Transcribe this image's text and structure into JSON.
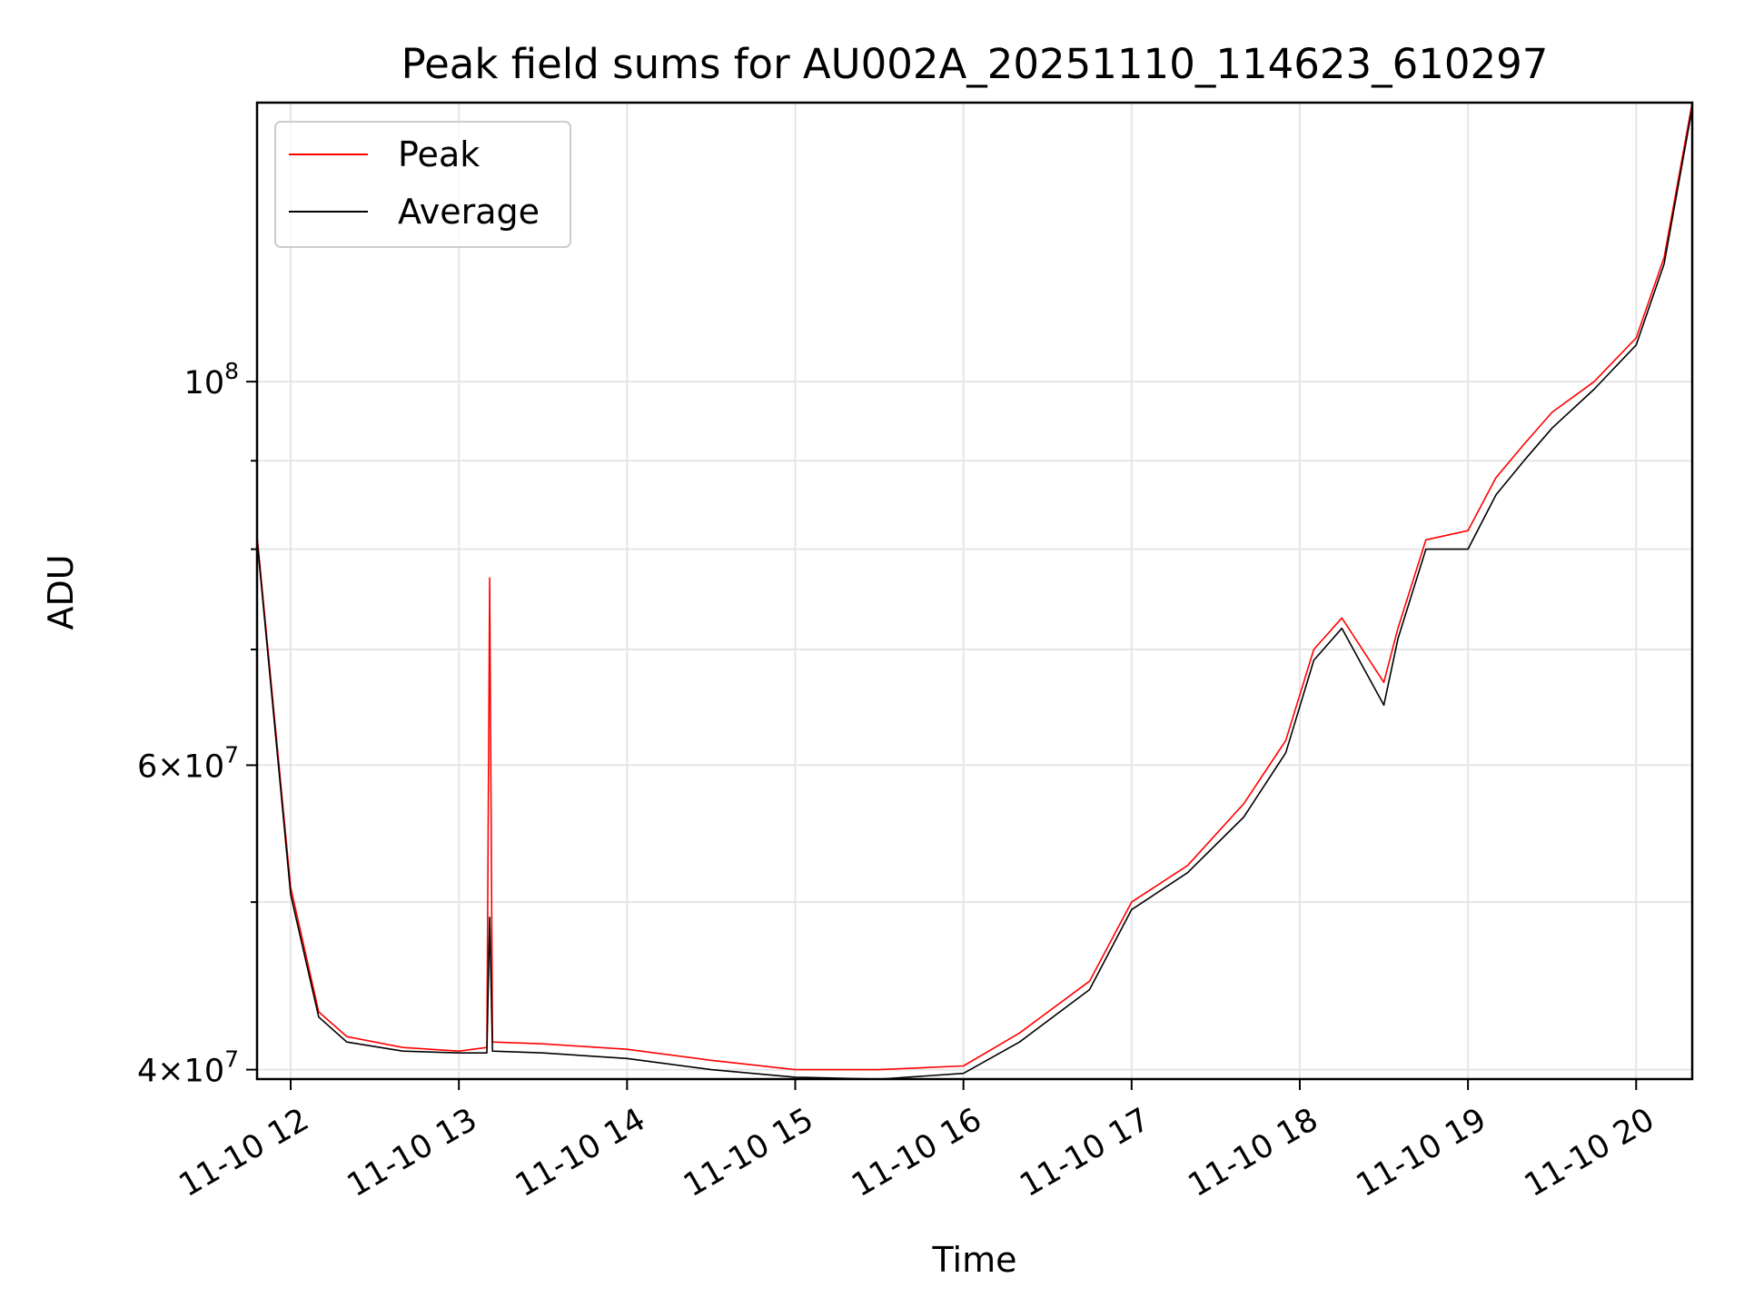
{
  "chart_data": {
    "type": "line",
    "title": "Peak field sums for AU002A_20251110_114623_610297",
    "xlabel": "Time",
    "ylabel": "ADU",
    "x_axis": {
      "kind": "datetime",
      "range": [
        "2025-11-10T11:48:00",
        "2025-11-10T20:20:00"
      ],
      "ticks": [
        "2025-11-10T12:00:00",
        "2025-11-10T13:00:00",
        "2025-11-10T14:00:00",
        "2025-11-10T15:00:00",
        "2025-11-10T16:00:00",
        "2025-11-10T17:00:00",
        "2025-11-10T18:00:00",
        "2025-11-10T19:00:00",
        "2025-11-10T20:00:00"
      ],
      "tick_labels": [
        "11-10 12",
        "11-10 13",
        "11-10 14",
        "11-10 15",
        "11-10 16",
        "11-10 17",
        "11-10 18",
        "11-10 19",
        "11-10 20"
      ],
      "tick_label_rotation_deg": 30
    },
    "y_axis": {
      "scale": "log",
      "range": [
        39500000,
        145000000
      ],
      "major_ticks": [
        {
          "value": 40000000,
          "mantissa": "4",
          "base": "10",
          "exp": "7"
        },
        {
          "value": 60000000,
          "mantissa": "6",
          "base": "10",
          "exp": "7"
        },
        {
          "value": 100000000,
          "mantissa": "",
          "base": "10",
          "exp": "8"
        }
      ],
      "minor_ticks": [
        50000000,
        70000000,
        80000000,
        90000000
      ]
    },
    "grid": true,
    "legend": {
      "position": "upper-left",
      "entries": [
        "Peak",
        "Average"
      ]
    },
    "series": [
      {
        "name": "Peak",
        "color": "#ff0000",
        "points": [
          [
            "2025-11-10T11:48:00",
            81500000
          ],
          [
            "2025-11-10T11:55:00",
            62000000
          ],
          [
            "2025-11-10T12:00:00",
            51000000
          ],
          [
            "2025-11-10T12:10:00",
            43200000
          ],
          [
            "2025-11-10T12:20:00",
            41800000
          ],
          [
            "2025-11-10T12:40:00",
            41200000
          ],
          [
            "2025-11-10T13:00:00",
            41000000
          ],
          [
            "2025-11-10T13:10:00",
            41200000
          ],
          [
            "2025-11-10T13:11:00",
            77000000
          ],
          [
            "2025-11-10T13:12:00",
            41500000
          ],
          [
            "2025-11-10T13:30:00",
            41400000
          ],
          [
            "2025-11-10T14:00:00",
            41100000
          ],
          [
            "2025-11-10T14:30:00",
            40500000
          ],
          [
            "2025-11-10T15:00:00",
            40000000
          ],
          [
            "2025-11-10T15:30:00",
            40000000
          ],
          [
            "2025-11-10T16:00:00",
            40200000
          ],
          [
            "2025-11-10T16:20:00",
            42000000
          ],
          [
            "2025-11-10T16:45:00",
            45000000
          ],
          [
            "2025-11-10T17:00:00",
            50000000
          ],
          [
            "2025-11-10T17:20:00",
            52500000
          ],
          [
            "2025-11-10T17:40:00",
            57000000
          ],
          [
            "2025-11-10T17:55:00",
            62000000
          ],
          [
            "2025-11-10T18:05:00",
            70000000
          ],
          [
            "2025-11-10T18:15:00",
            73000000
          ],
          [
            "2025-11-10T18:30:00",
            67000000
          ],
          [
            "2025-11-10T18:35:00",
            72000000
          ],
          [
            "2025-11-10T18:45:00",
            81000000
          ],
          [
            "2025-11-10T19:00:00",
            82000000
          ],
          [
            "2025-11-10T19:10:00",
            88000000
          ],
          [
            "2025-11-10T19:20:00",
            92000000
          ],
          [
            "2025-11-10T19:30:00",
            96000000
          ],
          [
            "2025-11-10T19:45:00",
            100000000
          ],
          [
            "2025-11-10T20:00:00",
            106000000
          ],
          [
            "2025-11-10T20:10:00",
            118000000
          ],
          [
            "2025-11-10T20:20:00",
            145000000
          ]
        ]
      },
      {
        "name": "Average",
        "color": "#000000",
        "points": [
          [
            "2025-11-10T11:48:00",
            81000000
          ],
          [
            "2025-11-10T11:55:00",
            61500000
          ],
          [
            "2025-11-10T12:00:00",
            50500000
          ],
          [
            "2025-11-10T12:10:00",
            42900000
          ],
          [
            "2025-11-10T12:20:00",
            41500000
          ],
          [
            "2025-11-10T12:40:00",
            41000000
          ],
          [
            "2025-11-10T13:00:00",
            40900000
          ],
          [
            "2025-11-10T13:10:00",
            40900000
          ],
          [
            "2025-11-10T13:11:00",
            49000000
          ],
          [
            "2025-11-10T13:12:00",
            41000000
          ],
          [
            "2025-11-10T13:30:00",
            40900000
          ],
          [
            "2025-11-10T14:00:00",
            40600000
          ],
          [
            "2025-11-10T14:30:00",
            40000000
          ],
          [
            "2025-11-10T15:00:00",
            39600000
          ],
          [
            "2025-11-10T15:30:00",
            39500000
          ],
          [
            "2025-11-10T16:00:00",
            39800000
          ],
          [
            "2025-11-10T16:20:00",
            41500000
          ],
          [
            "2025-11-10T16:45:00",
            44500000
          ],
          [
            "2025-11-10T17:00:00",
            49500000
          ],
          [
            "2025-11-10T17:20:00",
            52000000
          ],
          [
            "2025-11-10T17:40:00",
            56000000
          ],
          [
            "2025-11-10T17:55:00",
            61000000
          ],
          [
            "2025-11-10T18:05:00",
            69000000
          ],
          [
            "2025-11-10T18:15:00",
            72000000
          ],
          [
            "2025-11-10T18:30:00",
            65000000
          ],
          [
            "2025-11-10T18:35:00",
            71000000
          ],
          [
            "2025-11-10T18:45:00",
            80000000
          ],
          [
            "2025-11-10T19:00:00",
            80000000
          ],
          [
            "2025-11-10T19:10:00",
            86000000
          ],
          [
            "2025-11-10T19:20:00",
            90000000
          ],
          [
            "2025-11-10T19:30:00",
            94000000
          ],
          [
            "2025-11-10T19:45:00",
            99000000
          ],
          [
            "2025-11-10T20:00:00",
            105000000
          ],
          [
            "2025-11-10T20:10:00",
            117000000
          ],
          [
            "2025-11-10T20:20:00",
            144000000
          ]
        ]
      }
    ]
  }
}
